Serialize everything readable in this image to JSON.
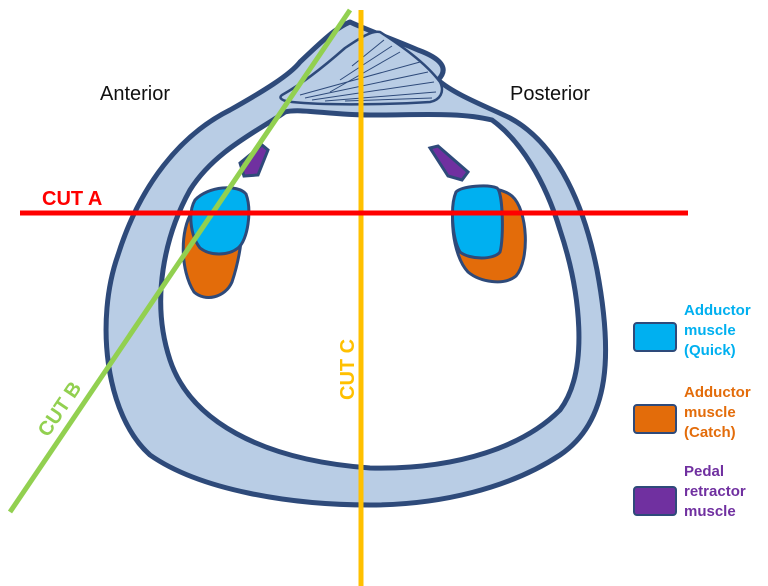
{
  "regions": {
    "anterior": "Anterior",
    "posterior": "Posterior"
  },
  "cuts": {
    "a": {
      "label": "CUT A",
      "color": "#ff0000"
    },
    "b": {
      "label": "CUT B",
      "color": "#92d050"
    },
    "c": {
      "label": "CUT C",
      "color": "#ffc000"
    }
  },
  "legend": [
    {
      "lines": [
        "Adductor",
        "muscle",
        "(Quick)"
      ],
      "color": "#00b0f0",
      "text_color": "#00b0f0"
    },
    {
      "lines": [
        "Adductor",
        "muscle",
        "(Catch)"
      ],
      "color": "#e36c0a",
      "text_color": "#e36c0a"
    },
    {
      "lines": [
        "Pedal",
        "retractor",
        "muscle"
      ],
      "color": "#7030a0",
      "text_color": "#7030a0"
    }
  ],
  "colors": {
    "shell_fill": "#b9cde5",
    "shell_stroke": "#2e4a7a",
    "background": "#ffffff"
  }
}
